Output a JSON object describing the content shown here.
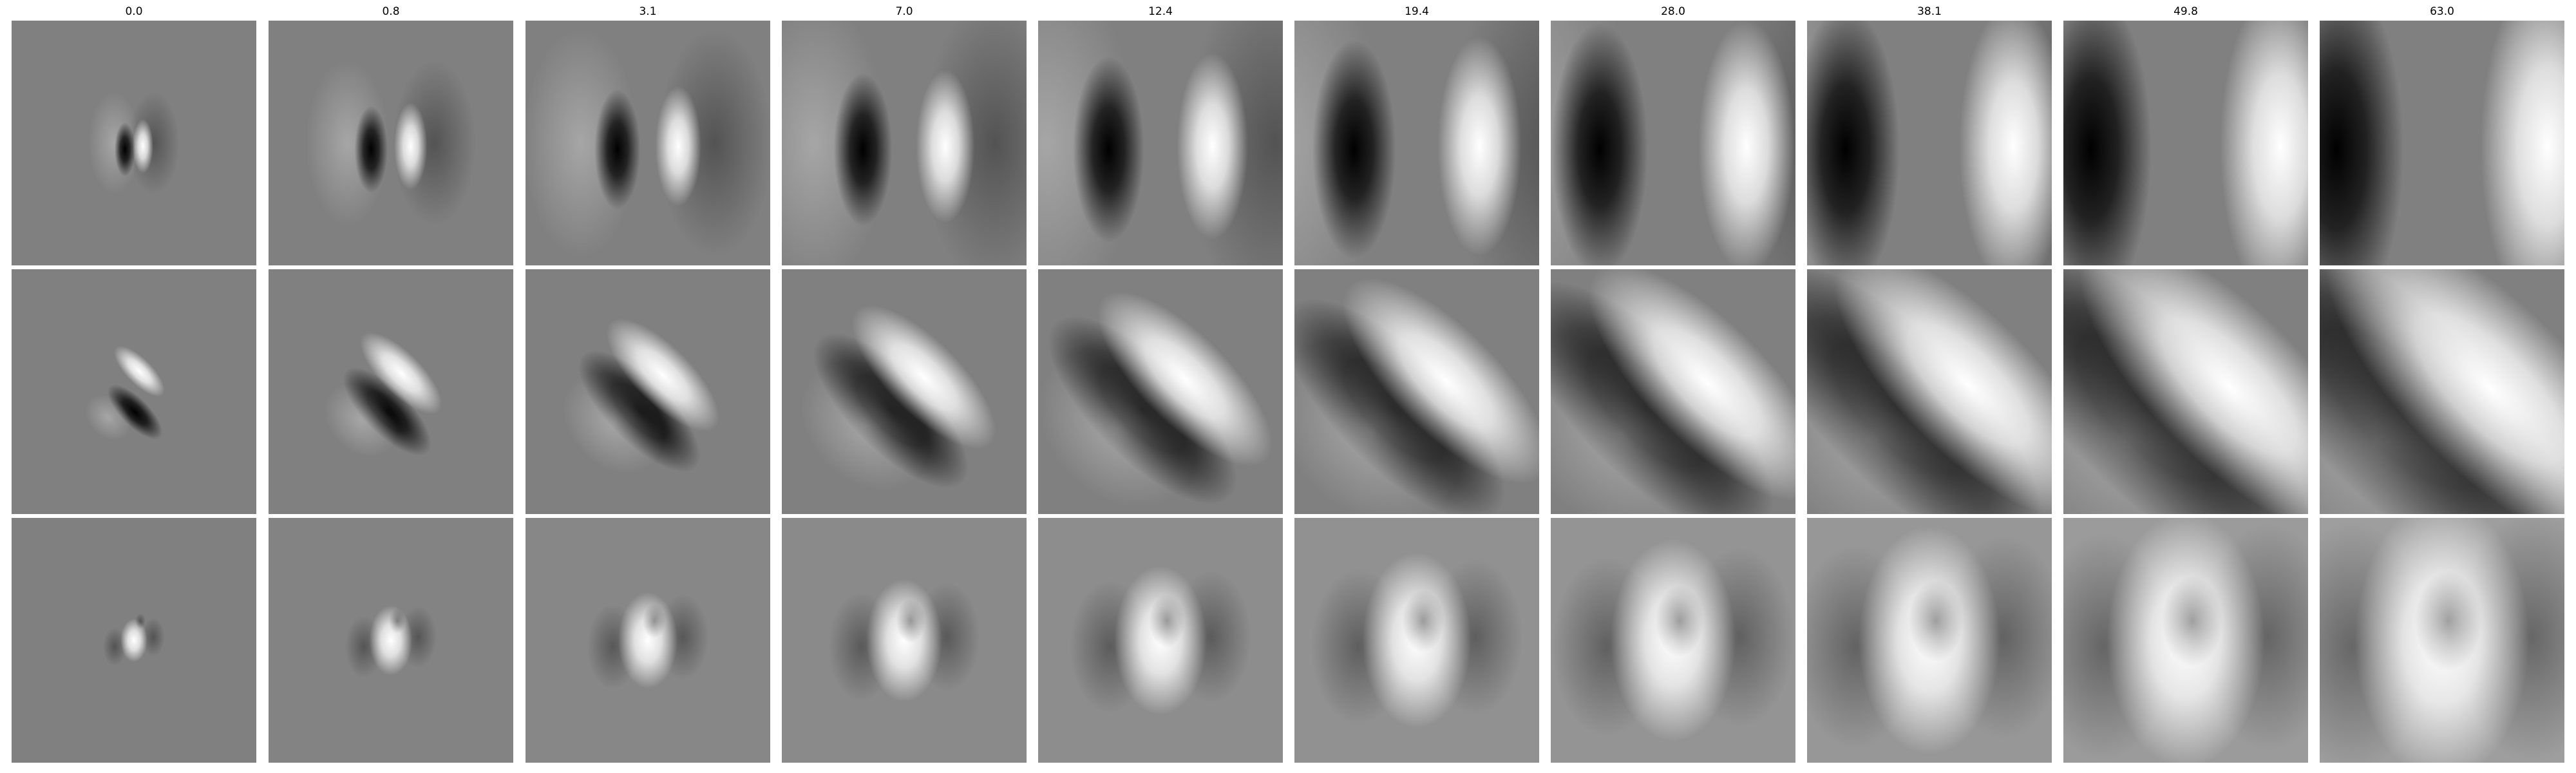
{
  "column_titles": [
    "0.0",
    "0.8",
    "3.1",
    "7.0",
    "12.4",
    "19.4",
    "28.0",
    "38.1",
    "49.8",
    "63.0"
  ],
  "rows": [
    {
      "pattern": "vertical-dark-bright-dipole",
      "scale_values": [
        0.0,
        0.8,
        3.1,
        7.0,
        12.4,
        19.4,
        28.0,
        38.1,
        49.8,
        63.0
      ]
    },
    {
      "pattern": "diagonal-dark-bright-dipole",
      "scale_values": [
        0.0,
        0.8,
        3.1,
        7.0,
        12.4,
        19.4,
        28.0,
        38.1,
        49.8,
        63.0
      ]
    },
    {
      "pattern": "central-bright-blob",
      "scale_values": [
        0.0,
        0.8,
        3.1,
        7.0,
        12.4,
        19.4,
        28.0,
        38.1,
        49.8,
        63.0
      ]
    }
  ],
  "colors": {
    "background": "#ffffff",
    "neutral_gray": "#808080",
    "dark": "#000000",
    "bright": "#ffffff"
  }
}
